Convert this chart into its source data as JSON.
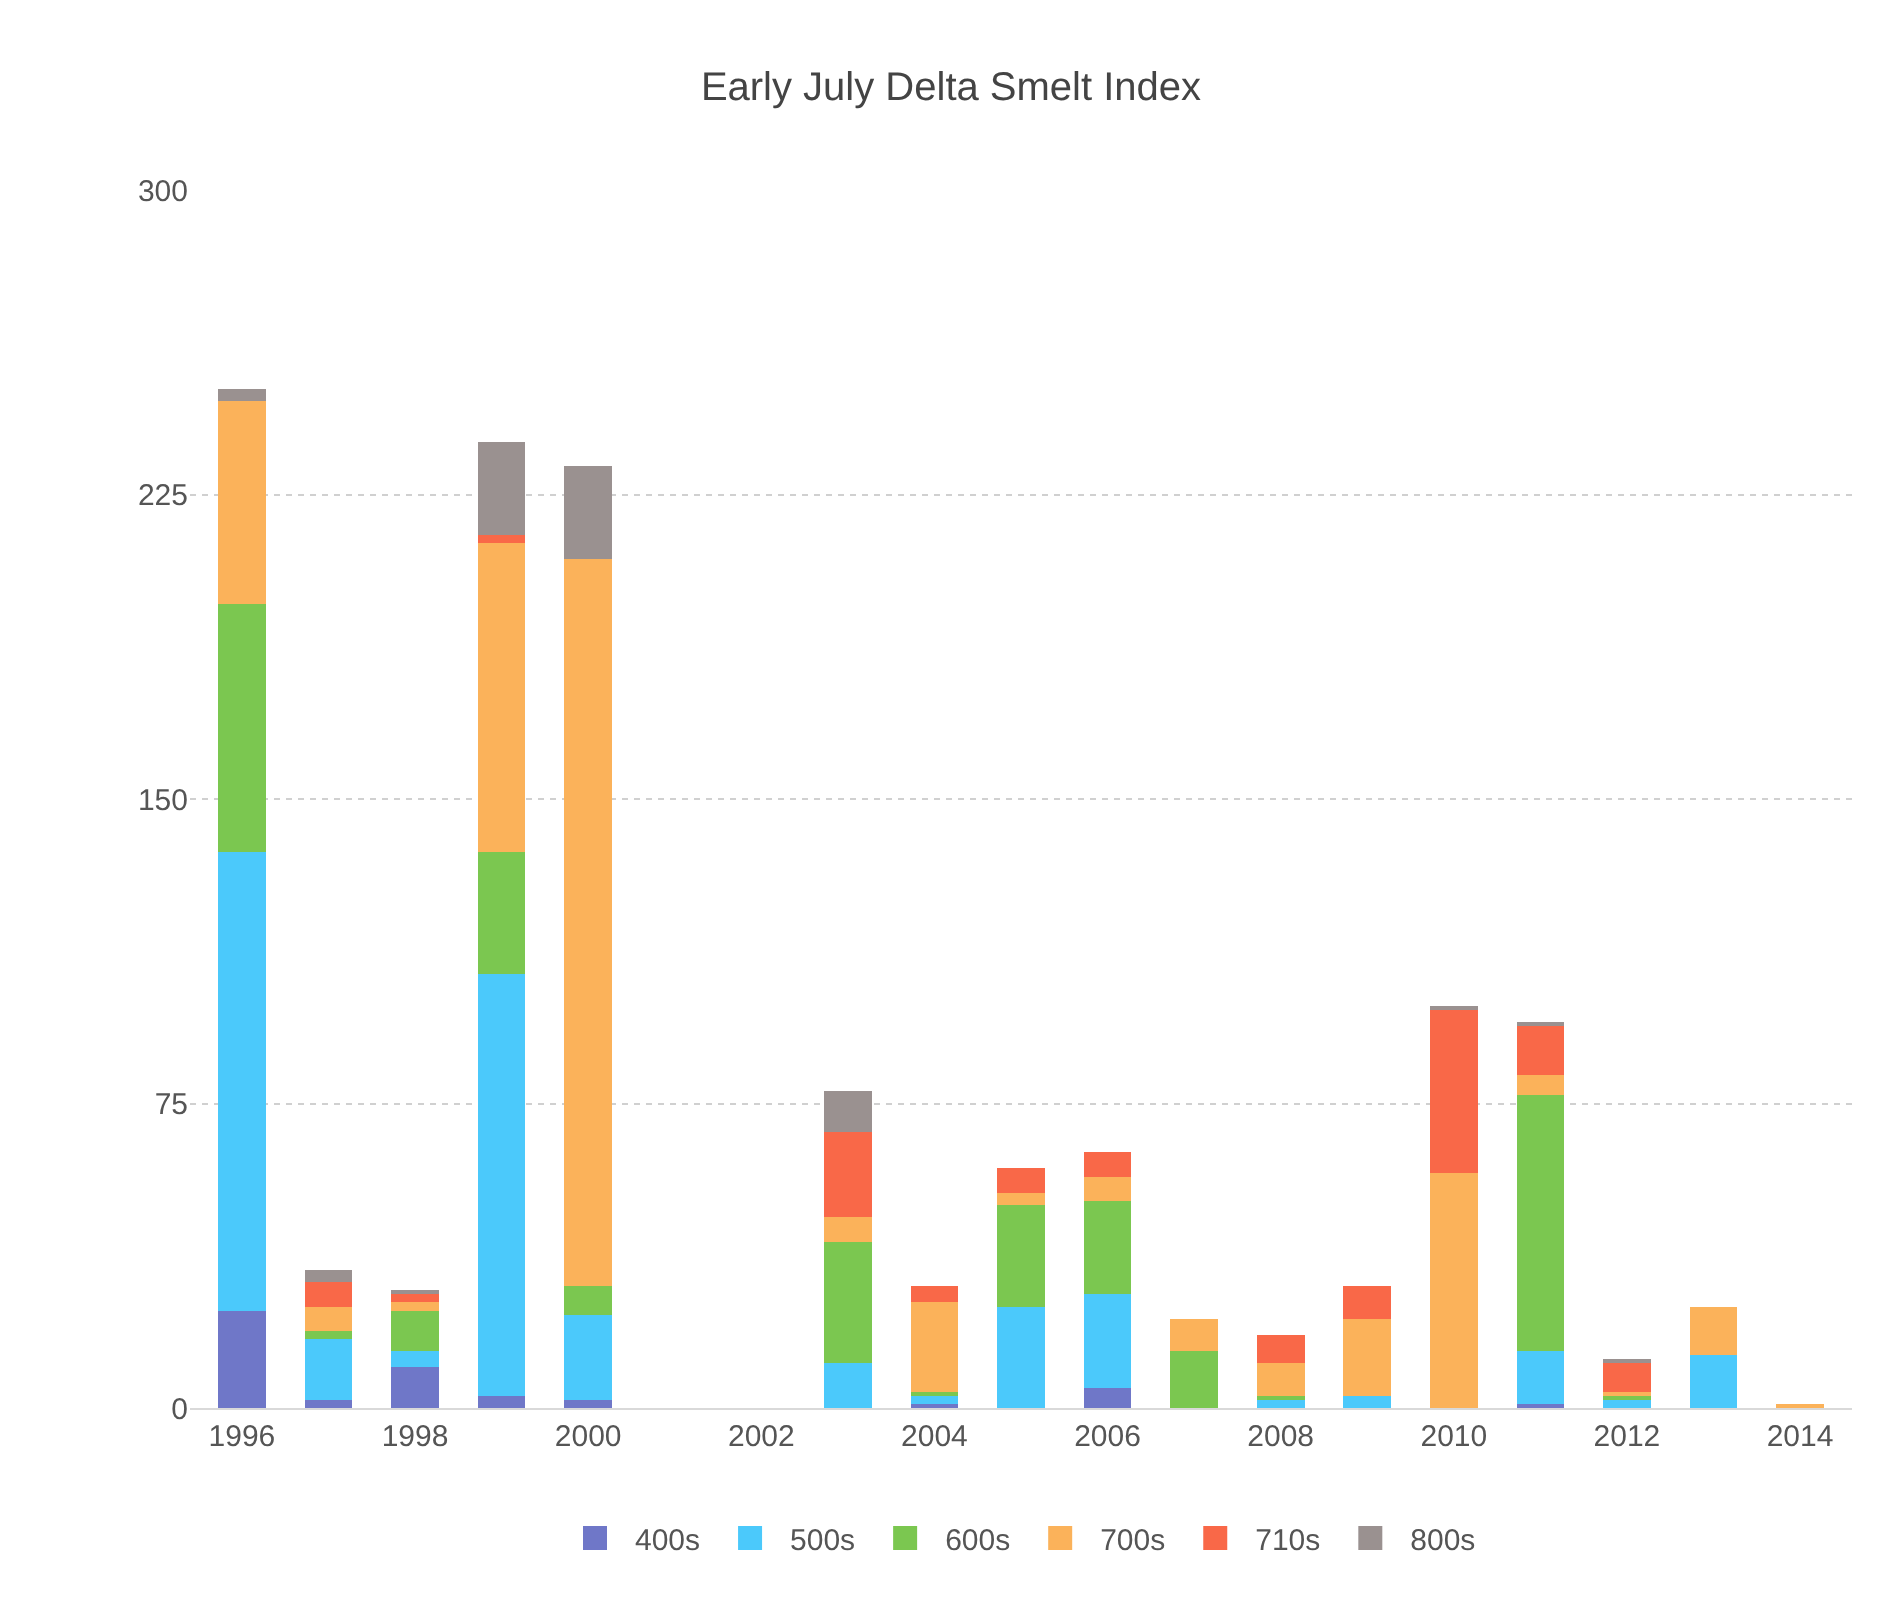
{
  "chart_data": {
    "type": "bar",
    "title": "Early July Delta Smelt Index",
    "stacked": true,
    "grid": "y",
    "legend": "bottom",
    "categories": [
      "1996",
      null,
      "1998",
      null,
      "2000",
      null,
      "2002",
      null,
      "2004",
      null,
      "2006",
      null,
      "2008",
      null,
      "2010",
      null,
      "2012",
      null,
      "2014"
    ],
    "ylim": [
      0,
      300
    ],
    "yticks": [
      0,
      75,
      150,
      225,
      300
    ],
    "series": [
      {
        "name": "400s",
        "color": "#6f77c8",
        "values": [
          24,
          2,
          10,
          3,
          2,
          null,
          null,
          0,
          1,
          0,
          5,
          0,
          0,
          0,
          0,
          1,
          0,
          0,
          0
        ]
      },
      {
        "name": "500s",
        "color": "#4bc9fb",
        "values": [
          113,
          15,
          4,
          104,
          21,
          null,
          null,
          11,
          2,
          25,
          23,
          0,
          2,
          3,
          0,
          13,
          2,
          13,
          0
        ]
      },
      {
        "name": "600s",
        "color": "#7bc750",
        "values": [
          61,
          2,
          10,
          30,
          7,
          null,
          null,
          30,
          1,
          25,
          23,
          14,
          1,
          0,
          0,
          63,
          1,
          0,
          0
        ]
      },
      {
        "name": "700s",
        "color": "#fbb25a",
        "values": [
          50,
          6,
          2,
          76,
          179,
          null,
          null,
          6,
          22,
          3,
          6,
          8,
          8,
          19,
          58,
          5,
          1,
          12,
          1
        ]
      },
      {
        "name": "710s",
        "color": "#f96848",
        "values": [
          0,
          6,
          2,
          2,
          0,
          null,
          null,
          21,
          4,
          6,
          6,
          0,
          7,
          8,
          40,
          12,
          7,
          0,
          0
        ]
      },
      {
        "name": "800s",
        "color": "#9a9190",
        "values": [
          3,
          3,
          1,
          23,
          23,
          null,
          null,
          10,
          0,
          0,
          0,
          0,
          0,
          0,
          1,
          1,
          1,
          0,
          0
        ]
      }
    ]
  }
}
